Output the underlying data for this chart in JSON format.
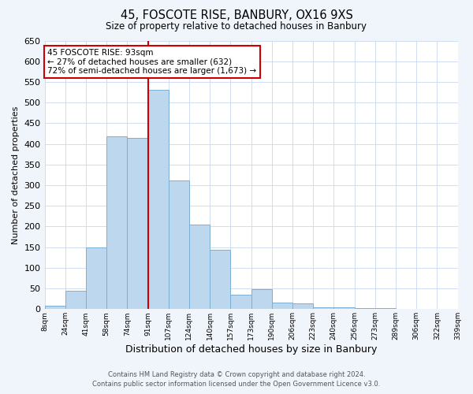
{
  "title": "45, FOSCOTE RISE, BANBURY, OX16 9XS",
  "subtitle": "Size of property relative to detached houses in Banbury",
  "xlabel": "Distribution of detached houses by size in Banbury",
  "ylabel": "Number of detached properties",
  "bin_labels": [
    "8sqm",
    "24sqm",
    "41sqm",
    "58sqm",
    "74sqm",
    "91sqm",
    "107sqm",
    "124sqm",
    "140sqm",
    "157sqm",
    "173sqm",
    "190sqm",
    "206sqm",
    "223sqm",
    "240sqm",
    "256sqm",
    "273sqm",
    "289sqm",
    "306sqm",
    "322sqm",
    "339sqm"
  ],
  "bar_values": [
    8,
    45,
    150,
    418,
    415,
    530,
    312,
    205,
    143,
    35,
    48,
    15,
    14,
    5,
    4,
    2,
    2,
    1,
    1,
    1
  ],
  "bar_color": "#bdd7ee",
  "bar_edge_color": "#7bafd4",
  "vline_x": 5,
  "vline_color": "#cc0000",
  "annotation_text": "45 FOSCOTE RISE: 93sqm\n← 27% of detached houses are smaller (632)\n72% of semi-detached houses are larger (1,673) →",
  "annotation_box_color": "white",
  "annotation_box_edge": "#cc0000",
  "ylim": [
    0,
    650
  ],
  "yticks": [
    0,
    50,
    100,
    150,
    200,
    250,
    300,
    350,
    400,
    450,
    500,
    550,
    600,
    650
  ],
  "footer_line1": "Contains HM Land Registry data © Crown copyright and database right 2024.",
  "footer_line2": "Contains public sector information licensed under the Open Government Licence v3.0.",
  "background_color": "#f0f4fb",
  "plot_bg_color": "#ffffff",
  "grid_color": "#c8d8ec"
}
